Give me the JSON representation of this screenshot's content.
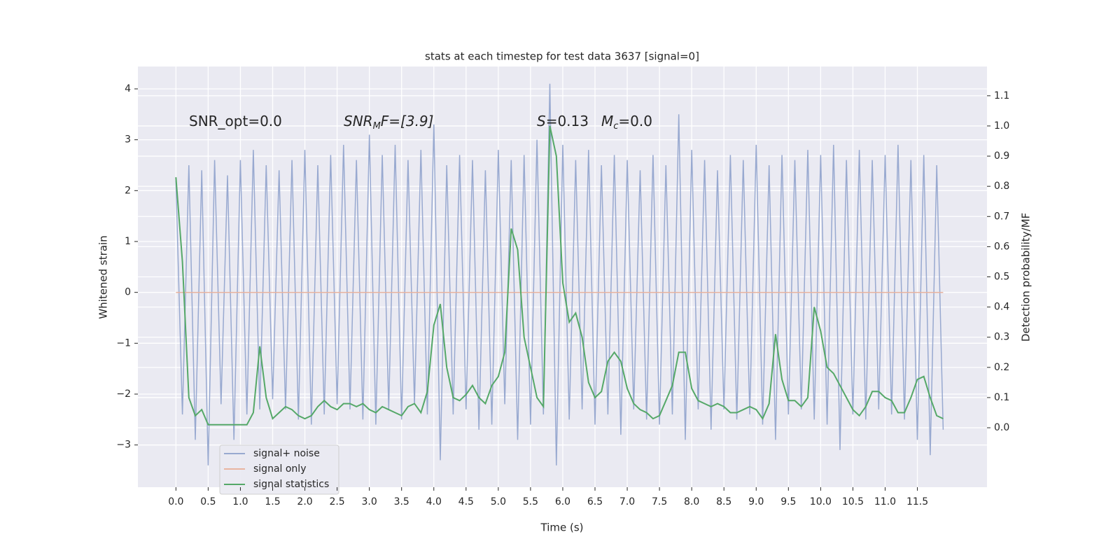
{
  "chart_data": {
    "type": "line",
    "title": "stats at each timestep for test data 3637 [signal=0]",
    "xlabel": "Time (s)",
    "ylabel": "Whitened strain",
    "y2label": "Detection probability/MF",
    "annotations": [
      "SNR_opt=0.0",
      [
        "SNR",
        "M",
        "F=[3.9]"
      ],
      [
        "S",
        "=0.13"
      ],
      [
        "M",
        "c",
        "=0.0"
      ]
    ],
    "x": [
      0,
      0.1,
      0.2,
      0.3,
      0.4,
      0.5,
      0.6,
      0.7,
      0.8,
      0.9,
      1,
      1.1,
      1.2,
      1.3,
      1.4,
      1.5,
      1.6,
      1.7,
      1.8,
      1.9,
      2,
      2.1,
      2.2,
      2.3,
      2.4,
      2.5,
      2.6,
      2.7,
      2.8,
      2.9,
      3,
      3.1,
      3.2,
      3.3,
      3.4,
      3.5,
      3.6,
      3.7,
      3.8,
      3.9,
      4,
      4.1,
      4.2,
      4.3,
      4.4,
      4.5,
      4.6,
      4.7,
      4.8,
      4.9,
      5,
      5.1,
      5.2,
      5.3,
      5.4,
      5.5,
      5.6,
      5.7,
      5.8,
      5.9,
      6,
      6.1,
      6.2,
      6.3,
      6.4,
      6.5,
      6.6,
      6.7,
      6.8,
      6.9,
      7,
      7.1,
      7.2,
      7.3,
      7.4,
      7.5,
      7.6,
      7.7,
      7.8,
      7.9,
      8,
      8.1,
      8.2,
      8.3,
      8.4,
      8.5,
      8.6,
      8.7,
      8.8,
      8.9,
      9,
      9.1,
      9.2,
      9.3,
      9.4,
      9.5,
      9.6,
      9.7,
      9.8,
      9.9,
      10,
      10.1,
      10.2,
      10.3,
      10.4,
      10.5,
      10.6,
      10.7,
      10.8,
      10.9,
      11,
      11.1,
      11.2,
      11.3,
      11.4,
      11.5,
      11.6,
      11.7,
      11.8,
      11.9
    ],
    "series": [
      {
        "name": "signal+ noise",
        "color": "#98a9d0",
        "values": [
          2.2,
          -2.4,
          2.5,
          -2.9,
          2.4,
          -3.4,
          2.6,
          -2.2,
          2.3,
          -2.9,
          2.6,
          -2.4,
          2.8,
          -2.3,
          2.5,
          -2.1,
          2.4,
          -2.3,
          2.6,
          -2.5,
          2.8,
          -2.6,
          2.5,
          -2.4,
          2.7,
          -2.2,
          2.9,
          -2.3,
          2.6,
          -2.5,
          3.1,
          -2.6,
          2.7,
          -2.3,
          2.9,
          -2.5,
          2.6,
          -2.2,
          2.8,
          -2.4,
          3.3,
          -3.3,
          2.5,
          -2.4,
          2.7,
          -2.3,
          2.6,
          -2.7,
          2.4,
          -2.6,
          2.8,
          -2.2,
          2.6,
          -2.9,
          2.7,
          -2.6,
          3.0,
          -2.4,
          4.1,
          -3.4,
          2.9,
          -2.5,
          2.6,
          -2.3,
          2.8,
          -2.6,
          2.5,
          -2.4,
          2.7,
          -2.8,
          2.6,
          -2.3,
          2.4,
          -2.5,
          2.7,
          -2.6,
          2.5,
          -2.4,
          3.5,
          -2.9,
          2.8,
          -2.3,
          2.6,
          -2.7,
          2.4,
          -2.3,
          2.7,
          -2.5,
          2.6,
          -2.4,
          2.9,
          -2.6,
          2.5,
          -2.9,
          2.7,
          -2.4,
          2.6,
          -2.3,
          2.8,
          -2.5,
          2.7,
          -2.6,
          2.9,
          -3.1,
          2.6,
          -2.4,
          2.8,
          -2.5,
          2.6,
          -2.3,
          2.7,
          -2.4,
          2.9,
          -2.5,
          2.6,
          -2.9,
          2.7,
          -3.2,
          2.5,
          -2.7
        ]
      },
      {
        "name": "signal only",
        "color": "#e8b4a0",
        "values": [
          0,
          0,
          0,
          0,
          0,
          0,
          0,
          0,
          0,
          0,
          0,
          0,
          0,
          0,
          0,
          0,
          0,
          0,
          0,
          0,
          0,
          0,
          0,
          0,
          0,
          0,
          0,
          0,
          0,
          0,
          0,
          0,
          0,
          0,
          0,
          0,
          0,
          0,
          0,
          0,
          0,
          0,
          0,
          0,
          0,
          0,
          0,
          0,
          0,
          0,
          0,
          0,
          0,
          0,
          0,
          0,
          0,
          0,
          0,
          0,
          0,
          0,
          0,
          0,
          0,
          0,
          0,
          0,
          0,
          0,
          0,
          0,
          0,
          0,
          0,
          0,
          0,
          0,
          0,
          0,
          0,
          0,
          0,
          0,
          0,
          0,
          0,
          0,
          0,
          0,
          0,
          0,
          0,
          0,
          0,
          0,
          0,
          0,
          0,
          0,
          0,
          0,
          0,
          0,
          0,
          0,
          0,
          0,
          0,
          0,
          0,
          0,
          0,
          0,
          0,
          0,
          0,
          0,
          0,
          0
        ]
      },
      {
        "name": "signal statistics",
        "color": "#55a868",
        "axis": "y2",
        "values": [
          0.83,
          0.55,
          0.1,
          0.04,
          0.06,
          0.01,
          0.01,
          0.01,
          0.01,
          0.01,
          0.01,
          0.01,
          0.05,
          0.27,
          0.1,
          0.03,
          0.05,
          0.07,
          0.06,
          0.04,
          0.03,
          0.04,
          0.07,
          0.09,
          0.07,
          0.06,
          0.08,
          0.08,
          0.07,
          0.08,
          0.06,
          0.05,
          0.07,
          0.06,
          0.05,
          0.04,
          0.07,
          0.08,
          0.05,
          0.12,
          0.34,
          0.41,
          0.2,
          0.1,
          0.09,
          0.11,
          0.14,
          0.1,
          0.08,
          0.14,
          0.17,
          0.25,
          0.66,
          0.59,
          0.3,
          0.2,
          0.1,
          0.07,
          1.0,
          0.9,
          0.48,
          0.35,
          0.38,
          0.3,
          0.15,
          0.1,
          0.12,
          0.22,
          0.25,
          0.22,
          0.13,
          0.08,
          0.06,
          0.05,
          0.03,
          0.04,
          0.09,
          0.14,
          0.25,
          0.25,
          0.13,
          0.09,
          0.08,
          0.07,
          0.08,
          0.07,
          0.05,
          0.05,
          0.06,
          0.07,
          0.06,
          0.03,
          0.08,
          0.31,
          0.16,
          0.09,
          0.09,
          0.07,
          0.1,
          0.4,
          0.32,
          0.2,
          0.18,
          0.14,
          0.1,
          0.06,
          0.04,
          0.07,
          0.12,
          0.12,
          0.1,
          0.09,
          0.05,
          0.05,
          0.1,
          0.16,
          0.17,
          0.1,
          0.04,
          0.03
        ]
      }
    ],
    "xlim": [
      -0.59,
      12.58
    ],
    "xticks": [
      {
        "value": 0,
        "label": "0.0"
      },
      0.5,
      {
        "value": 1,
        "label": "1.0"
      },
      1.5,
      {
        "value": 2,
        "label": "2.0"
      },
      2.5,
      {
        "value": 3,
        "label": "3.0"
      },
      3.5,
      {
        "value": 4,
        "label": "4.0"
      },
      4.5,
      {
        "value": 5,
        "label": "5.0"
      },
      5.5,
      {
        "value": 6,
        "label": "6.0"
      },
      6.5,
      {
        "value": 7,
        "label": "7.0"
      },
      7.5,
      {
        "value": 8,
        "label": "8.0"
      },
      8.5,
      {
        "value": 9,
        "label": "9.0"
      },
      9.5,
      {
        "value": 10,
        "label": "10.0"
      },
      10.5,
      {
        "value": 11,
        "label": "11.0"
      },
      11.5
    ],
    "ylim": [
      -3.83,
      4.44
    ],
    "yticks": [
      {
        "value": -3,
        "label": "−3"
      },
      {
        "value": -2,
        "label": "−2"
      },
      {
        "value": -1,
        "label": "−1"
      },
      0,
      1,
      2,
      3,
      4
    ],
    "y2lim": [
      -0.197,
      1.197
    ],
    "y2ticks": [
      {
        "value": 0,
        "label": "0.0"
      },
      0.1,
      0.2,
      0.3,
      0.4,
      0.5,
      0.6,
      0.7,
      0.8,
      0.9,
      {
        "value": 1,
        "label": "1.0"
      },
      1.1
    ],
    "grid": true,
    "legend": "lower left"
  }
}
